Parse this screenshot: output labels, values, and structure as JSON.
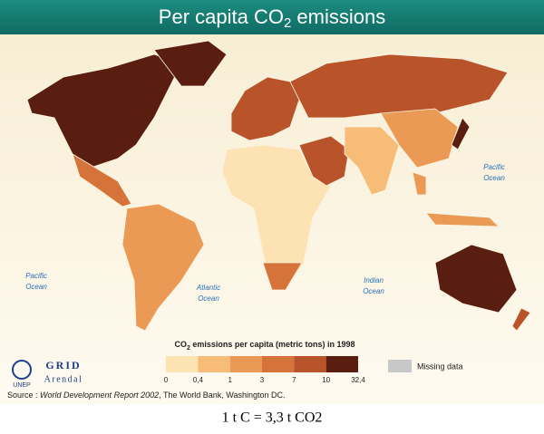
{
  "header": {
    "title_main": "Per capita CO",
    "title_sub": "2",
    "title_rest": " emissions"
  },
  "ocean_labels": [
    {
      "name": "Pacific",
      "word": "Ocean"
    },
    {
      "name": "Atlantic",
      "word": "Ocean"
    },
    {
      "name": "Indian",
      "word": "Ocean"
    },
    {
      "name": "Pacific",
      "word": "Ocean"
    }
  ],
  "legend": {
    "title_main": "CO",
    "title_sub": "2",
    "title_rest": " emissions per capita (metric tons) in 1998",
    "ticks": [
      "0",
      "0,4",
      "1",
      "3",
      "7",
      "10",
      "32,4"
    ],
    "colors": [
      "#fde2b4",
      "#f7bd78",
      "#eb9a55",
      "#d6733a",
      "#b9532a",
      "#5a1e10"
    ],
    "missing_color": "#c8c8c8",
    "missing_label": "Missing data"
  },
  "logos": {
    "unep": "UNEP",
    "grid": "GRID",
    "arendal": "Arendal"
  },
  "source": {
    "prefix": "Source : ",
    "italic": "World Development Report 2002",
    "rest": ", The World Bank, Washington DC."
  },
  "footer": "1 t C = 3,3 t CO2"
}
